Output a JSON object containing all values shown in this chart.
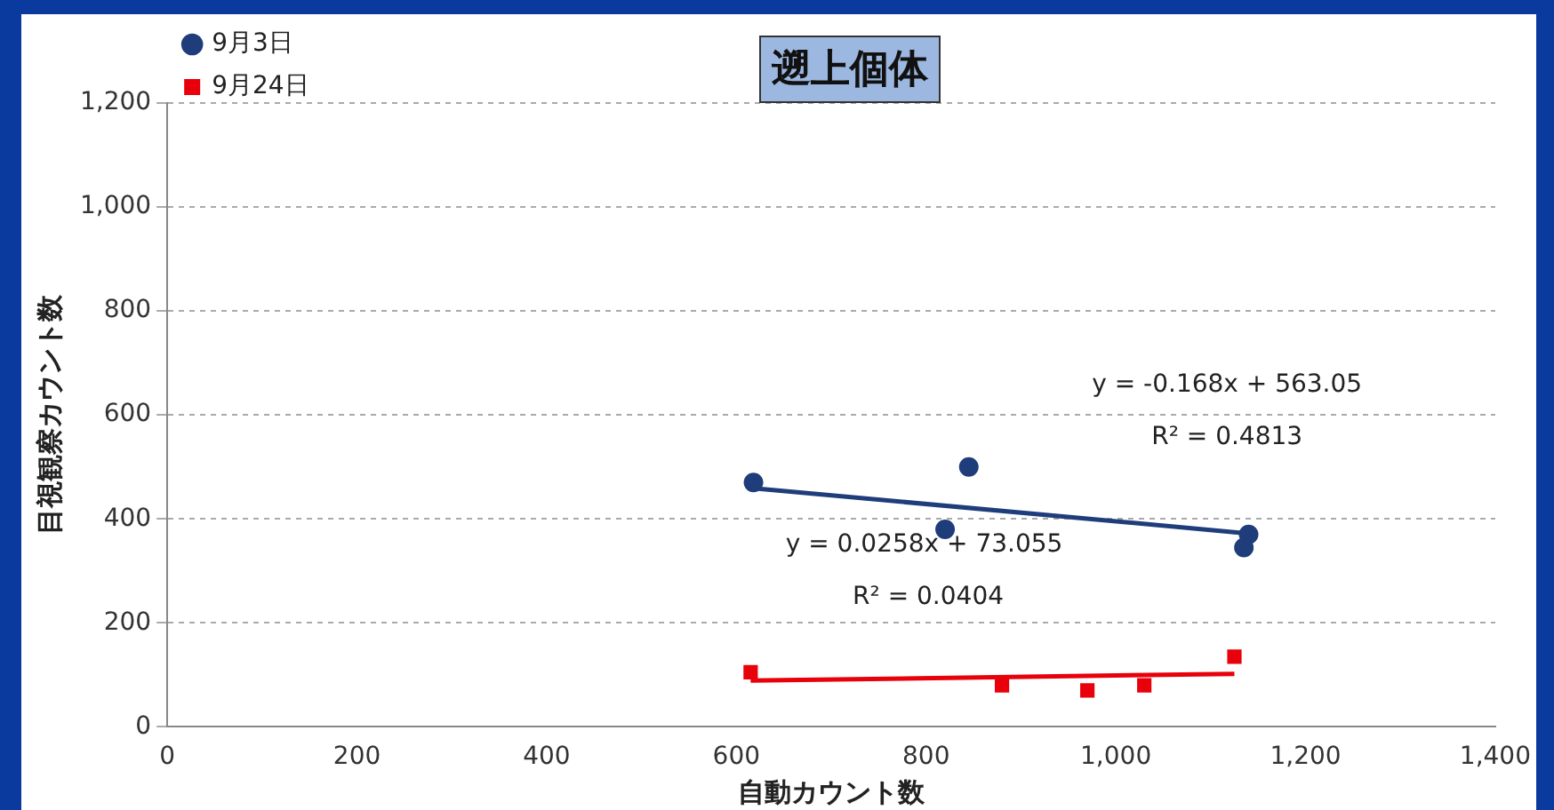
{
  "chart_data": {
    "type": "scatter",
    "title": "遡上個体",
    "xlabel": "自動カウント数",
    "ylabel": "目視観察カウント数",
    "xlim": [
      0,
      1400
    ],
    "xticks": [
      {
        "value": 0,
        "label": "0"
      },
      {
        "value": 200,
        "label": "200"
      },
      {
        "value": 400,
        "label": "400"
      },
      {
        "value": 600,
        "label": "600"
      },
      {
        "value": 800,
        "label": "800"
      },
      {
        "value": 1000,
        "label": "1,000"
      },
      {
        "value": 1200,
        "label": "1,200"
      },
      {
        "value": 1400,
        "label": "1,400"
      }
    ],
    "ylim": [
      0,
      1200
    ],
    "yticks": [
      {
        "value": 0,
        "label": "0"
      },
      {
        "value": 200,
        "label": "200"
      },
      {
        "value": 400,
        "label": "400"
      },
      {
        "value": 600,
        "label": "600"
      },
      {
        "value": 800,
        "label": "800"
      },
      {
        "value": 1000,
        "label": "1,000"
      },
      {
        "value": 1200,
        "label": "1,200"
      }
    ],
    "grid": "y",
    "legend": "top left",
    "series": [
      {
        "name": "9月3日",
        "type": "scatter",
        "marker": "circle",
        "color": "#1f3d7a",
        "x": [
          618,
          820,
          845,
          1140,
          1135
        ],
        "values": [
          470,
          380,
          500,
          370,
          345
        ]
      },
      {
        "name": "9月24日",
        "type": "scatter",
        "marker": "square",
        "color": "#e8000b",
        "x": [
          615,
          880,
          970,
          1030,
          1125
        ],
        "values": [
          105,
          80,
          70,
          80,
          135
        ]
      },
      {
        "type": "line",
        "marker": "none",
        "color": "#1f3d7a",
        "x": [
          618,
          1140
        ],
        "values": [
          459,
          372
        ]
      },
      {
        "type": "line",
        "marker": "none",
        "color": "#e8000b",
        "x": [
          615,
          1125
        ],
        "values": [
          89,
          102
        ]
      }
    ],
    "annotations": [
      "y = -0.168x + 563.05",
      "R² = 0.4813",
      "y = 0.0258x + 73.055",
      "R² = 0.0404"
    ]
  }
}
